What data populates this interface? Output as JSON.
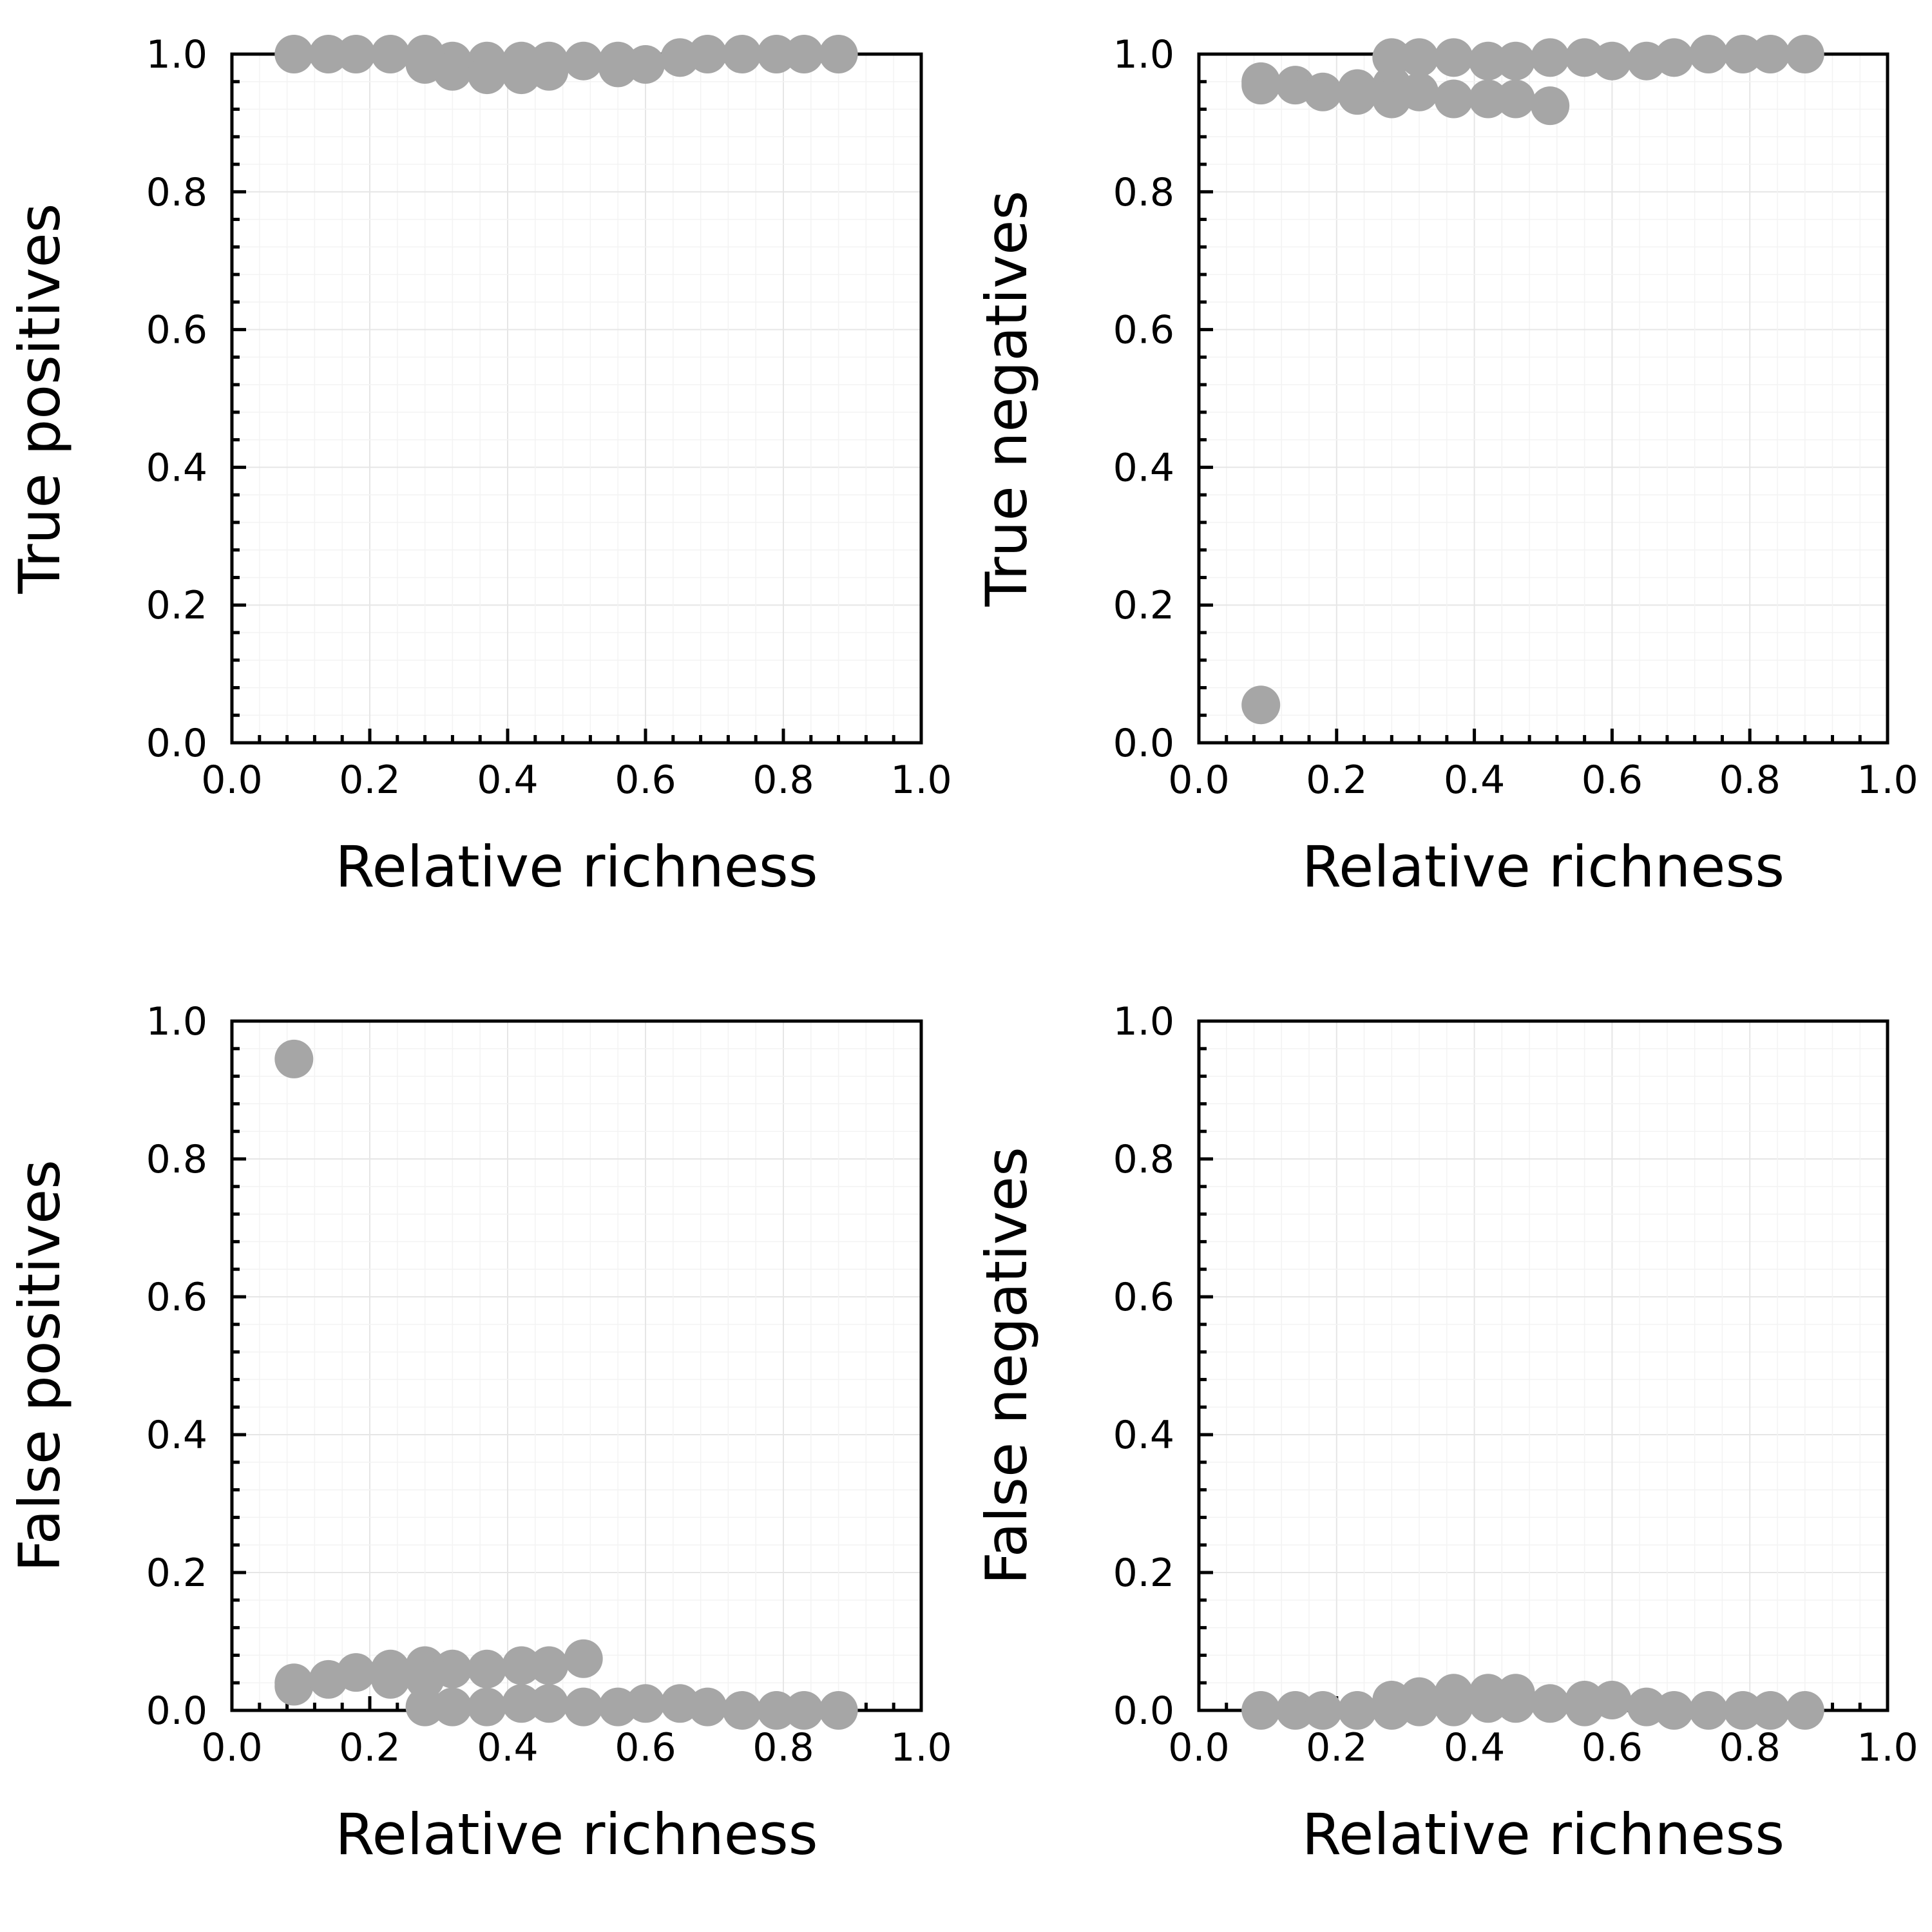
{
  "colors": {
    "marker": "#a6a6a6",
    "axis": "#000000"
  },
  "chart_data": [
    {
      "type": "scatter",
      "xlabel": "Relative richness",
      "ylabel": "True positives",
      "xlim": [
        0,
        1
      ],
      "ylim": [
        0,
        1
      ],
      "xticks": [
        "0.0",
        "0.2",
        "0.4",
        "0.6",
        "0.8",
        "1.0"
      ],
      "yticks": [
        "0.0",
        "0.2",
        "0.4",
        "0.6",
        "0.8",
        "1.0"
      ],
      "grid": true,
      "x": [
        0.09,
        0.14,
        0.18,
        0.23,
        0.28,
        0.28,
        0.32,
        0.32,
        0.37,
        0.37,
        0.42,
        0.42,
        0.46,
        0.46,
        0.51,
        0.56,
        0.56,
        0.6,
        0.65,
        0.69,
        0.74,
        0.79,
        0.83,
        0.88
      ],
      "y": [
        1.0,
        1.0,
        1.0,
        1.0,
        1.0,
        0.985,
        0.99,
        0.975,
        0.99,
        0.97,
        0.99,
        0.97,
        0.99,
        0.975,
        0.99,
        0.99,
        0.98,
        0.985,
        0.995,
        1.0,
        1.0,
        1.0,
        1.0,
        1.0
      ]
    },
    {
      "type": "scatter",
      "xlabel": "Relative richness",
      "ylabel": "True negatives",
      "xlim": [
        0,
        1
      ],
      "ylim": [
        0,
        1
      ],
      "xticks": [
        "0.0",
        "0.2",
        "0.4",
        "0.6",
        "0.8",
        "1.0"
      ],
      "yticks": [
        "0.0",
        "0.2",
        "0.4",
        "0.6",
        "0.8",
        "1.0"
      ],
      "grid": true,
      "x": [
        0.09,
        0.09,
        0.09,
        0.14,
        0.18,
        0.23,
        0.23,
        0.28,
        0.28,
        0.28,
        0.32,
        0.32,
        0.37,
        0.37,
        0.42,
        0.42,
        0.46,
        0.46,
        0.51,
        0.51,
        0.56,
        0.6,
        0.65,
        0.69,
        0.74,
        0.79,
        0.83,
        0.88
      ],
      "y": [
        0.055,
        0.96,
        0.955,
        0.955,
        0.945,
        0.95,
        0.94,
        0.955,
        0.935,
        0.995,
        0.945,
        0.995,
        0.935,
        0.995,
        0.935,
        0.99,
        0.935,
        0.99,
        0.925,
        0.995,
        0.995,
        0.99,
        0.99,
        0.995,
        1.0,
        1.0,
        1.0,
        1.0
      ]
    },
    {
      "type": "scatter",
      "xlabel": "Relative richness",
      "ylabel": "False positives",
      "xlim": [
        0,
        1
      ],
      "ylim": [
        0,
        1
      ],
      "xticks": [
        "0.0",
        "0.2",
        "0.4",
        "0.6",
        "0.8",
        "1.0"
      ],
      "yticks": [
        "0.0",
        "0.2",
        "0.4",
        "0.6",
        "0.8",
        "1.0"
      ],
      "grid": true,
      "x": [
        0.09,
        0.09,
        0.09,
        0.14,
        0.18,
        0.23,
        0.23,
        0.28,
        0.28,
        0.28,
        0.32,
        0.32,
        0.37,
        0.37,
        0.42,
        0.42,
        0.46,
        0.46,
        0.51,
        0.51,
        0.56,
        0.6,
        0.65,
        0.69,
        0.74,
        0.79,
        0.83,
        0.88
      ],
      "y": [
        0.945,
        0.04,
        0.035,
        0.045,
        0.055,
        0.06,
        0.045,
        0.065,
        0.045,
        0.005,
        0.06,
        0.005,
        0.06,
        0.005,
        0.065,
        0.01,
        0.065,
        0.01,
        0.075,
        0.005,
        0.005,
        0.01,
        0.01,
        0.005,
        0.0,
        0.0,
        0.0,
        0.0
      ]
    },
    {
      "type": "scatter",
      "xlabel": "Relative richness",
      "ylabel": "False negatives",
      "xlim": [
        0,
        1
      ],
      "ylim": [
        0,
        1
      ],
      "xticks": [
        "0.0",
        "0.2",
        "0.4",
        "0.6",
        "0.8",
        "1.0"
      ],
      "yticks": [
        "0.0",
        "0.2",
        "0.4",
        "0.6",
        "0.8",
        "1.0"
      ],
      "grid": true,
      "x": [
        0.09,
        0.14,
        0.18,
        0.23,
        0.28,
        0.28,
        0.32,
        0.32,
        0.37,
        0.37,
        0.42,
        0.42,
        0.46,
        0.46,
        0.51,
        0.56,
        0.56,
        0.6,
        0.65,
        0.69,
        0.74,
        0.79,
        0.83,
        0.88
      ],
      "y": [
        0.0,
        0.0,
        0.0,
        0.0,
        0.015,
        0.0,
        0.02,
        0.005,
        0.025,
        0.005,
        0.025,
        0.01,
        0.025,
        0.01,
        0.01,
        0.015,
        0.005,
        0.015,
        0.005,
        0.0,
        0.0,
        0.0,
        0.0,
        0.0
      ]
    }
  ]
}
